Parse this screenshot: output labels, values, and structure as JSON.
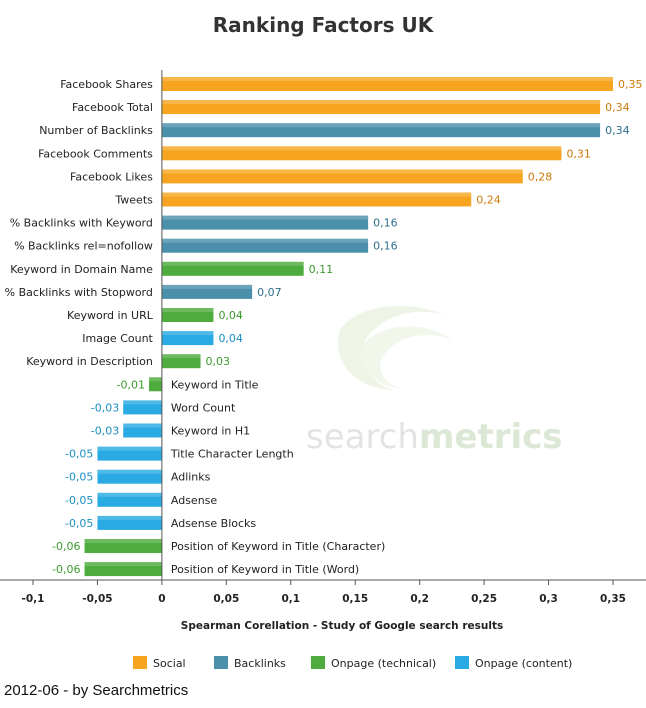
{
  "chart_data": {
    "type": "bar",
    "orientation": "horizontal",
    "title": "Ranking Factors UK",
    "xlabel": "Spearman Corellation - Study of Google search results",
    "ylabel": "",
    "xlim": [
      -0.1,
      0.35
    ],
    "x_ticks": [
      "-0,1",
      "-0,05",
      "0",
      "0,05",
      "0,1",
      "0,15",
      "0,2",
      "0,25",
      "0,3",
      "0,35"
    ],
    "x_tick_values": [
      -0.1,
      -0.05,
      0,
      0.05,
      0.1,
      0.15,
      0.2,
      0.25,
      0.3,
      0.35
    ],
    "grid": false,
    "legend_placement": "bottom",
    "series": [
      {
        "name": "Social",
        "color": "#f7a520",
        "text_color": "#d07a0a"
      },
      {
        "name": "Backlinks",
        "color": "#4b90ab",
        "text_color": "#2f6f8c"
      },
      {
        "name": "Onpage (technical)",
        "color": "#4eab3d",
        "text_color": "#3d9a2e"
      },
      {
        "name": "Onpage (content)",
        "color": "#29aae2",
        "text_color": "#1c8fc4"
      }
    ],
    "bars": [
      {
        "label": "Facebook Shares",
        "value": 0.35,
        "value_label": "0,35",
        "series": 0
      },
      {
        "label": "Facebook Total",
        "value": 0.34,
        "value_label": "0,34",
        "series": 0
      },
      {
        "label": "Number of Backlinks",
        "value": 0.34,
        "value_label": "0,34",
        "series": 1
      },
      {
        "label": "Facebook Comments",
        "value": 0.31,
        "value_label": "0,31",
        "series": 0
      },
      {
        "label": "Facebook Likes",
        "value": 0.28,
        "value_label": "0,28",
        "series": 0
      },
      {
        "label": "Tweets",
        "value": 0.24,
        "value_label": "0,24",
        "series": 0
      },
      {
        "label": "% Backlinks with Keyword",
        "value": 0.16,
        "value_label": "0,16",
        "series": 1
      },
      {
        "label": "% Backlinks rel=nofollow",
        "value": 0.16,
        "value_label": "0,16",
        "series": 1
      },
      {
        "label": "Keyword in Domain Name",
        "value": 0.11,
        "value_label": "0,11",
        "series": 2
      },
      {
        "label": "% Backlinks with Stopword",
        "value": 0.07,
        "value_label": "0,07",
        "series": 1
      },
      {
        "label": "Keyword in URL",
        "value": 0.04,
        "value_label": "0,04",
        "series": 2
      },
      {
        "label": "Image Count",
        "value": 0.04,
        "value_label": "0,04",
        "series": 3
      },
      {
        "label": "Keyword in Description",
        "value": 0.03,
        "value_label": "0,03",
        "series": 2
      },
      {
        "label": "Keyword in Title",
        "value": -0.01,
        "value_label": "-0,01",
        "series": 2
      },
      {
        "label": "Word Count",
        "value": -0.03,
        "value_label": "-0,03",
        "series": 3
      },
      {
        "label": "Keyword in H1",
        "value": -0.03,
        "value_label": "-0,03",
        "series": 3
      },
      {
        "label": "Title Character Length",
        "value": -0.05,
        "value_label": "-0,05",
        "series": 3
      },
      {
        "label": "Adlinks",
        "value": -0.05,
        "value_label": "-0,05",
        "series": 3
      },
      {
        "label": "Adsense",
        "value": -0.05,
        "value_label": "-0,05",
        "series": 3
      },
      {
        "label": "Adsense Blocks",
        "value": -0.05,
        "value_label": "-0,05",
        "series": 3
      },
      {
        "label": "Position of Keyword in Title (Character)",
        "value": -0.06,
        "value_label": "-0,06",
        "series": 2
      },
      {
        "label": "Position of Keyword in Title (Word)",
        "value": -0.06,
        "value_label": "-0,06",
        "series": 2
      }
    ]
  },
  "watermark": {
    "part1": "search",
    "part2": "metrics"
  },
  "footer": "2012-06 - by Searchmetrics"
}
